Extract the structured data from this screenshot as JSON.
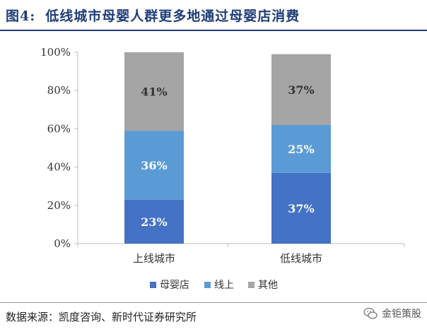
{
  "figure": {
    "number": "图4:",
    "title": "低线城市母婴人群更多地通过母婴店消费",
    "source": "数据来源：凯度咨询、新时代证券研究所",
    "watermark": "金钜策股"
  },
  "chart_data": {
    "type": "bar",
    "stacked": true,
    "categories": [
      "上线城市",
      "低线城市"
    ],
    "series": [
      {
        "name": "母婴店",
        "values": [
          23,
          37
        ],
        "color": "#4472c4"
      },
      {
        "name": "线上",
        "values": [
          36,
          25
        ],
        "color": "#5b9bd5"
      },
      {
        "name": "其他",
        "values": [
          41,
          37
        ],
        "color": "#a5a5a5"
      }
    ],
    "data_labels": [
      [
        "23%",
        "36%",
        "41%"
      ],
      [
        "37%",
        "25%",
        "37%"
      ]
    ],
    "y_ticks": [
      "0%",
      "20%",
      "40%",
      "60%",
      "80%",
      "100%"
    ],
    "ylim": [
      0,
      100
    ],
    "legend_position": "bottom",
    "grid": false
  }
}
